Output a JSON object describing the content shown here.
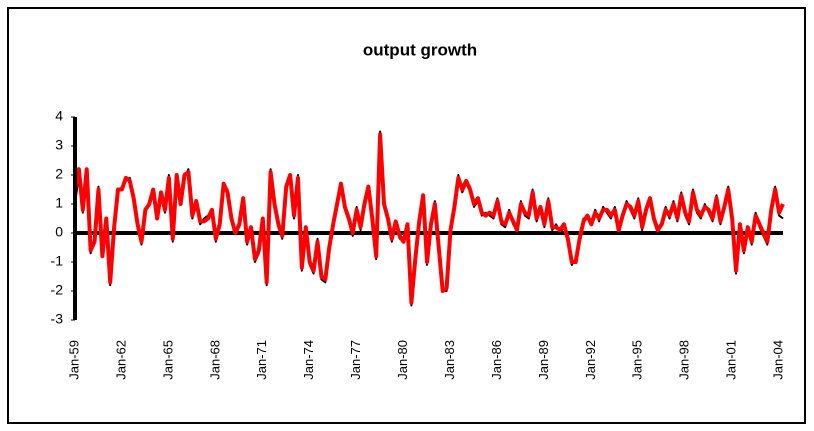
{
  "chart_data": {
    "type": "line",
    "title": "output growth",
    "categories": [
      "Jan-59",
      null,
      null,
      null,
      null,
      null,
      null,
      null,
      null,
      null,
      null,
      null,
      "Jan-62",
      null,
      null,
      null,
      null,
      null,
      null,
      null,
      null,
      null,
      null,
      null,
      "Jan-65",
      null,
      null,
      null,
      null,
      null,
      null,
      null,
      null,
      null,
      null,
      null,
      "Jan-68",
      null,
      null,
      null,
      null,
      null,
      null,
      null,
      null,
      null,
      null,
      null,
      "Jan-71",
      null,
      null,
      null,
      null,
      null,
      null,
      null,
      null,
      null,
      null,
      null,
      "Jan-74",
      null,
      null,
      null,
      null,
      null,
      null,
      null,
      null,
      null,
      null,
      null,
      "Jan-77",
      null,
      null,
      null,
      null,
      null,
      null,
      null,
      null,
      null,
      null,
      null,
      "Jan-80",
      null,
      null,
      null,
      null,
      null,
      null,
      null,
      null,
      null,
      null,
      null,
      "Jan-83",
      null,
      null,
      null,
      null,
      null,
      null,
      null,
      null,
      null,
      null,
      null,
      "Jan-86",
      null,
      null,
      null,
      null,
      null,
      null,
      null,
      null,
      null,
      null,
      null,
      "Jan-89",
      null,
      null,
      null,
      null,
      null,
      null,
      null,
      null,
      null,
      null,
      null,
      "Jan-92",
      null,
      null,
      null,
      null,
      null,
      null,
      null,
      null,
      null,
      null,
      null,
      "Jan-95",
      null,
      null,
      null,
      null,
      null,
      null,
      null,
      null,
      null,
      null,
      null,
      "Jan-98",
      null,
      null,
      null,
      null,
      null,
      null,
      null,
      null,
      null,
      null,
      null,
      "Jan-01",
      null,
      null,
      null,
      null,
      null,
      null,
      null,
      null,
      null,
      null,
      null,
      "Jan-04",
      null
    ],
    "series": [
      {
        "color": "#000000",
        "values": [
          1.0,
          2.0,
          0.7,
          1.9,
          -0.7,
          -0.2,
          1.6,
          -0.6,
          0.3,
          -1.8,
          0.1,
          1.4,
          1.6,
          1.8,
          1.9,
          1.1,
          0.2,
          -0.4,
          0.7,
          1.1,
          1.4,
          0.6,
          1.3,
          0.7,
          2.0,
          -0.3,
          1.9,
          1.1,
          1.9,
          2.2,
          0.5,
          1.0,
          0.3,
          0.5,
          0.6,
          0.7,
          -0.3,
          0.4,
          1.6,
          1.5,
          0.4,
          0.1,
          0.2,
          1.1,
          -0.4,
          0.1,
          -1.0,
          -0.7,
          0.4,
          -1.8,
          2.2,
          0.9,
          0.2,
          -0.2,
          1.7,
          1.9,
          0.5,
          2.0,
          -1.3,
          0.1,
          -1.1,
          -1.4,
          -0.2,
          -1.6,
          -1.7,
          -0.4,
          0.2,
          1.1,
          1.6,
          0.8,
          0.4,
          -0.1,
          0.9,
          0.1,
          1.1,
          1.5,
          0.4,
          -0.9,
          3.5,
          0.9,
          0.4,
          -0.3,
          0.3,
          -0.2,
          -0.2,
          0.2,
          -2.5,
          -1.0,
          0.5,
          1.2,
          -1.1,
          0.2,
          1.1,
          -0.6,
          -2.0,
          -2.0,
          0.2,
          1.0,
          2.0,
          1.4,
          1.7,
          1.6,
          0.9,
          1.1,
          0.6,
          0.7,
          0.6,
          0.5,
          1.2,
          0.3,
          0.2,
          0.8,
          0.3,
          0.2,
          1.1,
          0.6,
          0.5,
          1.5,
          0.4,
          0.8,
          0.2,
          1.2,
          0.1,
          0.3,
          0.0,
          0.2,
          -0.3,
          -1.1,
          -0.9,
          -0.1,
          0.5,
          0.5,
          0.4,
          0.8,
          0.4,
          0.9,
          0.7,
          0.5,
          0.9,
          0.0,
          0.5,
          1.1,
          0.8,
          0.5,
          1.2,
          0.1,
          0.9,
          1.1,
          0.4,
          0.0,
          0.4,
          0.9,
          0.5,
          1.1,
          0.4,
          1.4,
          0.6,
          0.3,
          1.5,
          0.7,
          0.5,
          1.0,
          0.7,
          0.4,
          1.3,
          0.3,
          1.0,
          1.6,
          0.4,
          -1.4,
          0.2,
          -0.7,
          0.1,
          -0.4,
          0.7,
          0.2,
          -0.1,
          -0.4,
          0.9,
          1.6,
          0.6,
          0.5
        ]
      },
      {
        "color": "#ff0000",
        "values": [
          1.5,
          2.2,
          0.8,
          2.2,
          -0.6,
          -0.3,
          1.5,
          -0.8,
          0.5,
          -1.7,
          0.2,
          1.5,
          1.5,
          1.9,
          1.8,
          1.2,
          0.3,
          -0.3,
          0.8,
          1.0,
          1.5,
          0.5,
          1.4,
          0.8,
          1.9,
          -0.2,
          2.0,
          1.0,
          2.0,
          2.1,
          0.6,
          1.1,
          0.4,
          0.4,
          0.5,
          0.8,
          -0.2,
          0.3,
          1.7,
          1.4,
          0.5,
          0.0,
          0.3,
          1.2,
          -0.3,
          0.2,
          -0.9,
          -0.6,
          0.5,
          -1.7,
          2.1,
          1.0,
          0.3,
          -0.1,
          1.6,
          2.0,
          0.6,
          1.9,
          -1.2,
          0.2,
          -1.0,
          -1.3,
          -0.3,
          -1.5,
          -1.6,
          -0.5,
          0.3,
          1.0,
          1.7,
          0.9,
          0.5,
          0.0,
          0.8,
          0.2,
          1.0,
          1.6,
          0.5,
          -0.8,
          3.4,
          1.0,
          0.5,
          -0.2,
          0.4,
          -0.1,
          -0.3,
          0.3,
          -2.4,
          -0.9,
          0.4,
          1.3,
          -1.0,
          0.3,
          1.0,
          -0.5,
          -2.0,
          -1.9,
          0.1,
          0.9,
          1.9,
          1.5,
          1.8,
          1.5,
          1.0,
          1.2,
          0.7,
          0.6,
          0.7,
          0.6,
          1.1,
          0.4,
          0.3,
          0.7,
          0.4,
          0.1,
          1.0,
          0.7,
          0.6,
          1.4,
          0.5,
          0.9,
          0.3,
          1.1,
          0.2,
          0.2,
          0.1,
          0.3,
          -0.2,
          -1.0,
          -1.0,
          -0.2,
          0.4,
          0.6,
          0.3,
          0.7,
          0.5,
          0.8,
          0.8,
          0.6,
          0.8,
          0.1,
          0.6,
          1.0,
          0.9,
          0.6,
          1.1,
          0.2,
          0.8,
          1.2,
          0.5,
          0.1,
          0.3,
          0.8,
          0.6,
          1.0,
          0.5,
          1.3,
          0.7,
          0.4,
          1.4,
          0.8,
          0.6,
          0.9,
          0.8,
          0.5,
          1.2,
          0.4,
          0.9,
          1.5,
          0.5,
          -1.3,
          0.3,
          -0.6,
          0.2,
          -0.3,
          0.6,
          0.3,
          0.0,
          -0.3,
          0.8,
          1.5,
          0.7,
          1.0
        ]
      }
    ],
    "ylim": [
      -3,
      4
    ],
    "yticks": [
      -3,
      -2,
      -1,
      0,
      1,
      2,
      3,
      4
    ],
    "grid": false
  }
}
